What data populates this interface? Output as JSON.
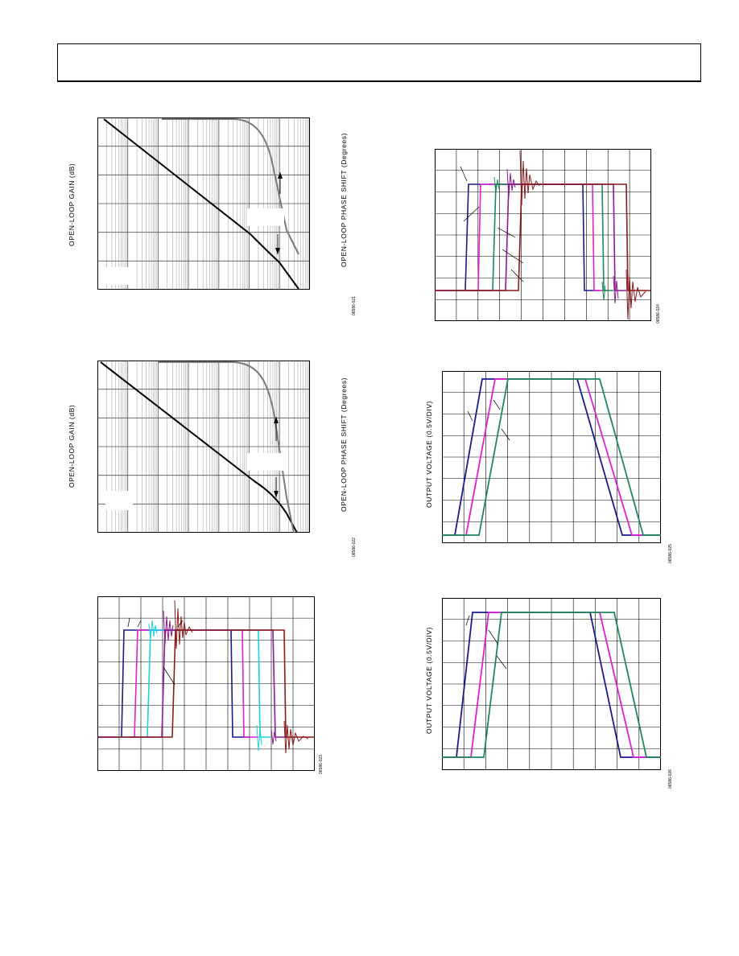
{
  "header": {},
  "figures": {
    "f21": {
      "ylabel": "OPEN-LOOP GAIN (dB)",
      "ylabel2": "OPEN-LOOP PHASE SHIFT (Degrees)",
      "code": "06586-021"
    },
    "f22": {
      "ylabel": "OPEN-LOOP GAIN (dB)",
      "ylabel2": "OPEN-LOOP PHASE SHIFT (Degrees)",
      "code": "06586-022"
    },
    "f23": {
      "code": "06586-023"
    },
    "f24": {
      "code": "06586-024"
    },
    "f25": {
      "ylabel": "OUTPUT VOLTAGE (0.5V/DIV)",
      "code": "06586-025"
    },
    "f26": {
      "ylabel": "OUTPUT VOLTAGE (0.5V/DIV)",
      "code": "06586-026"
    }
  },
  "colors": {
    "navy": "#1a1a8c",
    "magenta": "#e020d0",
    "cyan": "#1ad0e0",
    "purple": "#8a1a90",
    "maroon": "#8b1a1a",
    "green": "#1a8a5a",
    "gray": "#808080",
    "black": "#000000"
  }
}
